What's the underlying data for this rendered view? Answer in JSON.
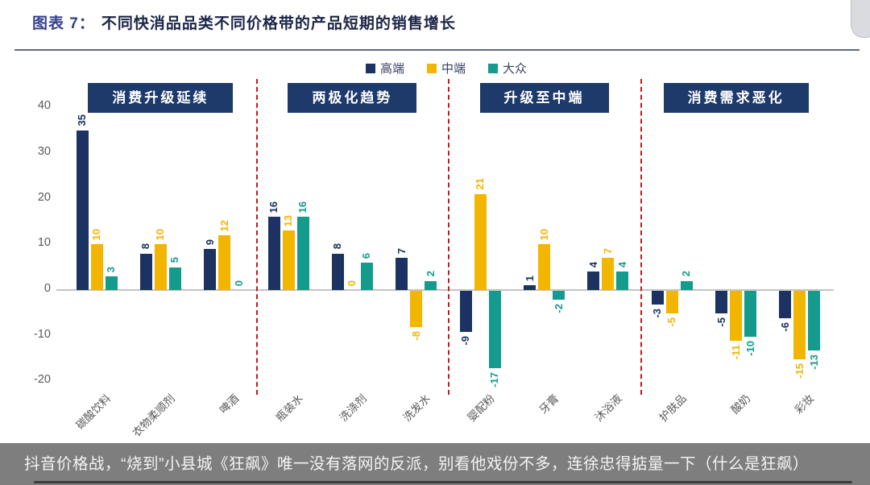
{
  "title": {
    "prefix": "图表 7：",
    "text": "不同快消品品类不同价格带的产品短期的销售增长"
  },
  "caption": "抖音价格战，“烧到”小县城《狂飙》唯一没有落网的反派，别看他戏份不多，连徐忠得掂量一下（什么是狂飙）",
  "chart_data": {
    "type": "bar",
    "title": "不同快消品品类不同价格带的产品短期的销售增长",
    "ylim": [
      -20,
      40
    ],
    "yticks": [
      40,
      30,
      20,
      10,
      0,
      -10,
      -20
    ],
    "grid": false,
    "legend_position": "top-center",
    "x_label_rotation": -45,
    "value_label_rotation": 90,
    "series": [
      {
        "name": "高端",
        "color": "#1B3263"
      },
      {
        "name": "中端",
        "color": "#F2B600"
      },
      {
        "name": "大众",
        "color": "#159B8E"
      }
    ],
    "groups": [
      {
        "header": "消费升级延续",
        "categories": [
          {
            "name": "碳酸饮料",
            "values": [
              35,
              10,
              3
            ]
          },
          {
            "name": "衣物柔顺剂",
            "values": [
              8,
              10,
              5
            ]
          },
          {
            "name": "啤酒",
            "values": [
              9,
              12,
              0
            ]
          }
        ]
      },
      {
        "header": "两极化趋势",
        "categories": [
          {
            "name": "瓶装水",
            "values": [
              16,
              13,
              16
            ]
          },
          {
            "name": "洗涤剂",
            "values": [
              8,
              0,
              6
            ]
          },
          {
            "name": "洗发水",
            "values": [
              7,
              -8,
              2
            ]
          }
        ]
      },
      {
        "header": "升级至中端",
        "categories": [
          {
            "name": "婴配粉",
            "values": [
              -9,
              21,
              -17
            ]
          },
          {
            "name": "牙膏",
            "values": [
              1,
              10,
              -2
            ]
          },
          {
            "name": "沐浴液",
            "values": [
              4,
              7,
              4
            ]
          }
        ]
      },
      {
        "header": "消费需求恶化",
        "categories": [
          {
            "name": "护肤品",
            "values": [
              -3,
              -5,
              2
            ]
          },
          {
            "name": "酸奶",
            "values": [
              -5,
              -11,
              -10
            ]
          },
          {
            "name": "彩妆",
            "values": [
              -6,
              -15,
              -13
            ]
          }
        ]
      }
    ],
    "separator_style": "red-dashed-vertical"
  }
}
